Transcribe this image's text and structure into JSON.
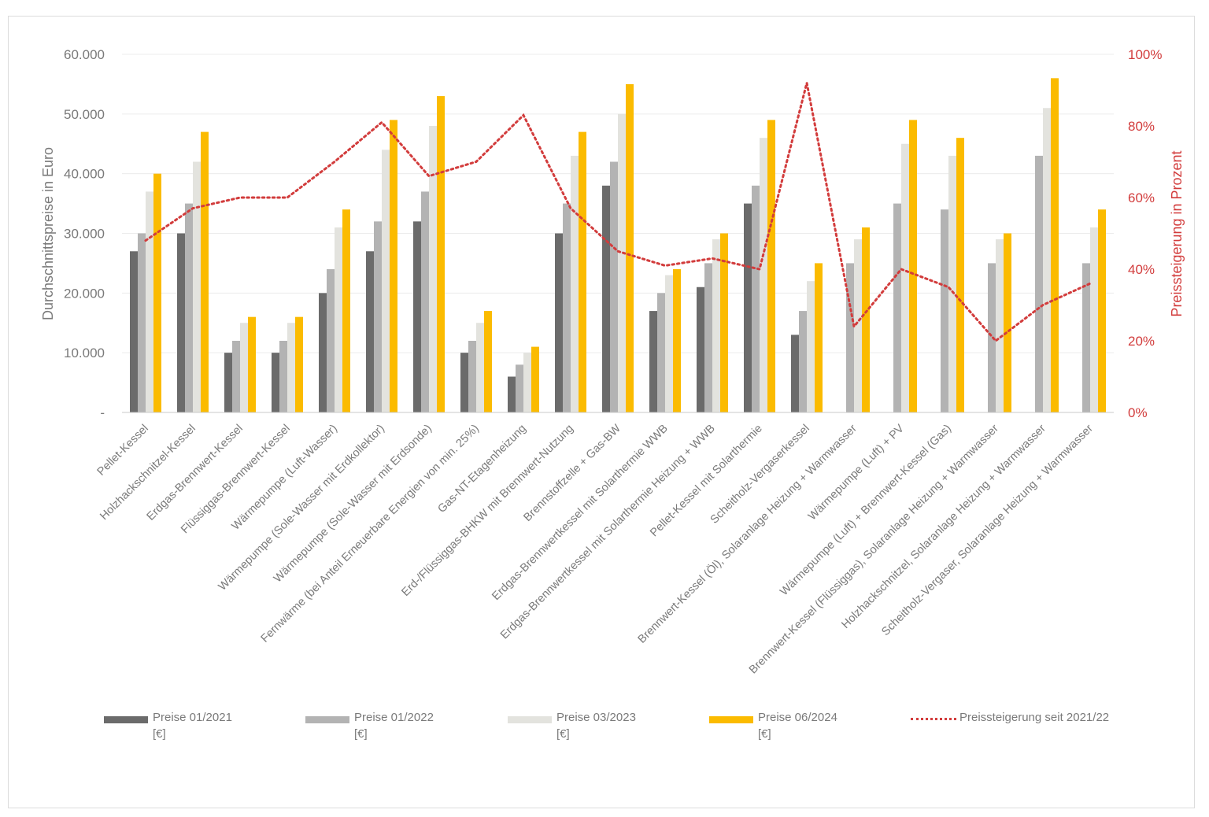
{
  "chart_data": {
    "type": "bar",
    "ylabel": "Durchschnittspreise in Euro",
    "y2label": "Preissteigerung in Prozent",
    "ylim": [
      0,
      60000
    ],
    "y2lim": [
      0,
      100
    ],
    "yticks": [
      "-",
      "10.000",
      "20.000",
      "30.000",
      "40.000",
      "50.000",
      "60.000"
    ],
    "y2ticks": [
      "0%",
      "20%",
      "40%",
      "60%",
      "80%",
      "100%"
    ],
    "grid": true,
    "legend_position": "bottom",
    "categories": [
      "Pellet-Kessel",
      "Holzhackschnitzel-Kessel",
      "Erdgas-Brennwert-Kessel",
      "Flüssiggas-Brennwert-Kessel",
      "Wärmepumpe (Luft-Wasser)",
      "Wärmepumpe (Sole-Wasser mit Erdkollektor)",
      "Wärmepumpe (Sole-Wasser mit Erdsonde)",
      "Fernwärme (bei Anteil Erneuerbare Energien von min. 25%)",
      "Gas-NT-Etagenheizung",
      "Erd-/Flüssiggas-BHKW mit Brennwert-Nutzung",
      "Brennstoffzelle + Gas-BW",
      "Erdgas-Brennwertkessel mit Solarthermie WWB",
      "Erdgas-Brennwertkessel mit Solarthermie Heizung + WWB",
      "Pellet-Kessel mit Solarthermie",
      "Scheitholz-Vergaserkessel",
      "Brennwert-Kessel (Öl), Solaranlage Heizung + Warmwasser",
      "Wärmepumpe (Luft) + PV",
      "Wärmepumpe (Luft) + Brennwert-Kessel (Gas)",
      "Brennwert-Kessel (Flüssiggas), Solaranlage Heizung + Warmwasser",
      "Holzhackschnitzel, Solaranlage Heizung + Warmwasser",
      "Scheitholz-Vergaser, Solaranlage Heizung + Warmwasser"
    ],
    "series": [
      {
        "name": "Preise 01/2021",
        "unit": "[€]",
        "color": "#6b6b6b",
        "values": [
          27000,
          30000,
          10000,
          10000,
          20000,
          27000,
          32000,
          10000,
          6000,
          30000,
          38000,
          17000,
          21000,
          35000,
          13000,
          null,
          null,
          null,
          null,
          null,
          null
        ]
      },
      {
        "name": "Preise 01/2022",
        "unit": "[€]",
        "color": "#b3b3b3",
        "values": [
          30000,
          35000,
          12000,
          12000,
          24000,
          32000,
          37000,
          12000,
          8000,
          35000,
          42000,
          20000,
          25000,
          38000,
          17000,
          25000,
          35000,
          34000,
          25000,
          43000,
          25000
        ]
      },
      {
        "name": "Preise 03/2023",
        "unit": "[€]",
        "color": "#e3e3de",
        "values": [
          37000,
          42000,
          15000,
          15000,
          31000,
          44000,
          48000,
          15000,
          10000,
          43000,
          50000,
          23000,
          29000,
          46000,
          22000,
          29000,
          45000,
          43000,
          29000,
          51000,
          31000
        ]
      },
      {
        "name": "Preise 06/2024",
        "unit": "[€]",
        "color": "#fbbb00",
        "values": [
          40000,
          47000,
          16000,
          16000,
          34000,
          49000,
          53000,
          17000,
          11000,
          47000,
          55000,
          24000,
          30000,
          49000,
          25000,
          31000,
          49000,
          46000,
          30000,
          56000,
          34000
        ]
      }
    ],
    "line_series": {
      "name": "Preissteigerung seit 2021/22",
      "color": "#d23c3c",
      "axis": "right",
      "values": [
        48,
        57,
        60,
        60,
        70,
        81,
        66,
        70,
        83,
        57,
        45,
        41,
        43,
        40,
        92,
        24,
        40,
        35,
        20,
        30,
        36
      ]
    }
  }
}
